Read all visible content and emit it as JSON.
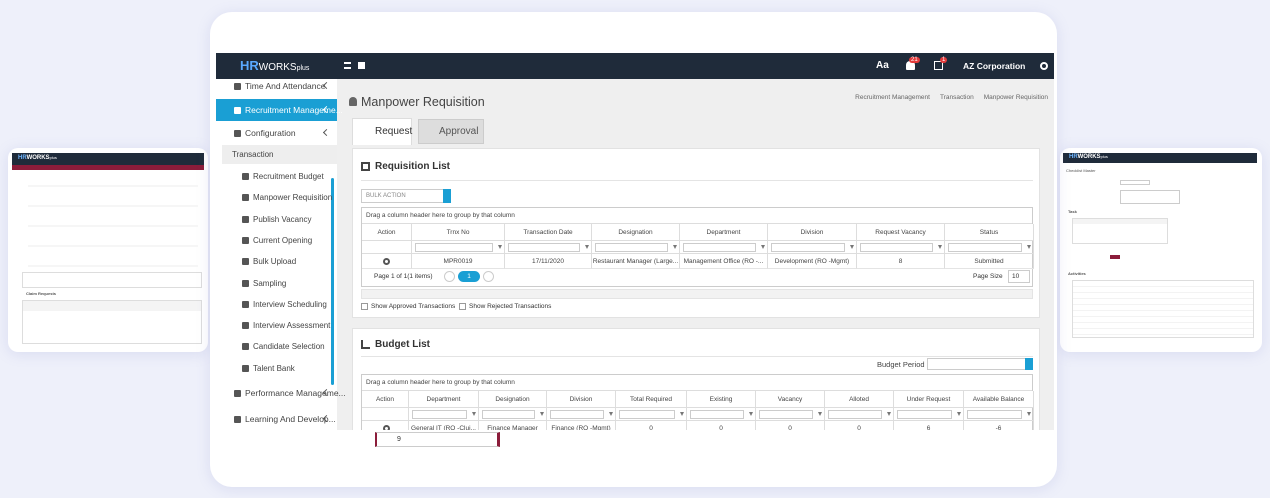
{
  "header": {
    "logo_hr": "HR",
    "logo_works": "WORKS",
    "logo_plus": "plus",
    "font_button": "Aa",
    "notification_badge": "21",
    "task_badge": "1",
    "company": "AZ Corporation"
  },
  "sidebar": {
    "top_items": [
      "Time And Attendance",
      "Recruitment Manageme..."
    ],
    "configuration": "Configuration",
    "transaction": "Transaction",
    "submenu": [
      "Recruitment Budget",
      "Manpower Requisition",
      "Publish Vacancy",
      "Current Opening",
      "Bulk Upload",
      "Sampling",
      "Interview Scheduling",
      "Interview Assessment",
      "Candidate Selection",
      "Talent Bank"
    ],
    "bottom_items": [
      "Performance Manageme...",
      "Learning And Develop..."
    ]
  },
  "page": {
    "title": "Manpower Requisition",
    "breadcrumb": [
      "Recruitment Management",
      "Transaction",
      "Manpower Requisition"
    ],
    "tabs": [
      "Request",
      "Approval"
    ]
  },
  "requisition": {
    "title": "Requisition List",
    "bulk_action": "BULK ACTION",
    "group_hint": "Drag a column header here to group by that column",
    "headers": [
      "Action",
      "Trnx No",
      "Transaction Date",
      "Designation",
      "Department",
      "Division",
      "Request Vacancy",
      "Status"
    ],
    "rows": [
      [
        "",
        "MPR0019",
        "17/11/2020",
        "Restaurant Manager (Large...",
        "Management Office (RO -...",
        "Development (RO -Mgmt)",
        8,
        "Submitted"
      ]
    ],
    "pager_info": "Page 1 of 1(1 items)",
    "current_page": 1,
    "page_size_label": "Page Size",
    "page_size": 10,
    "checkboxes": [
      "Show Approved Transactions",
      "Show Rejected Transactions"
    ]
  },
  "budget": {
    "title": "Budget List",
    "period_label": "Budget Period",
    "group_hint": "Drag a column header here to group by that column",
    "headers": [
      "Action",
      "Department",
      "Designation",
      "Division",
      "Total Required",
      "Existing",
      "Vacancy",
      "Alloted",
      "Under Request",
      "Available Balance"
    ],
    "rows": [
      [
        "",
        "General IT (RO -Clui...",
        "Finance Manager",
        "Finance (RO -Mgmt)",
        0,
        0,
        0,
        0,
        6,
        -6
      ]
    ]
  },
  "dropdown_value": 9,
  "left_preview": {
    "logo_hr": "HR",
    "logo_works": "WORKS",
    "logo_plus": "plus",
    "section": "Claim Requests"
  },
  "right_preview": {
    "logo_hr": "HR",
    "logo_works": "WORKS",
    "logo_plus": "plus",
    "title": "Checklist Master",
    "task": "Task",
    "activities": "Activities"
  }
}
